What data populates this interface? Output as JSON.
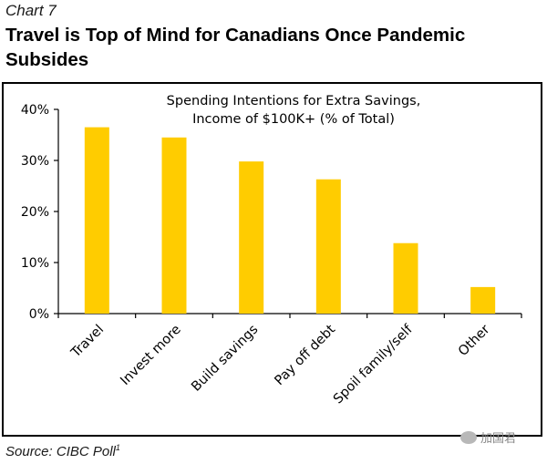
{
  "header": {
    "chart_number": "Chart 7",
    "title": "Travel is Top of Mind for Canadians Once Pandemic Subsides"
  },
  "footer": {
    "source": "Source: CIBC Poll",
    "source_superscript": "1",
    "watermark": "加国君"
  },
  "colors": {
    "bar": "#FFCC00",
    "axis": "#000000"
  },
  "chart_data": {
    "type": "bar",
    "title_lines": [
      "Spending Intentions for Extra Savings,",
      "Income of $100K+ (% of Total)"
    ],
    "categories": [
      "Travel",
      "Invest more",
      "Build savings",
      "Pay off debt",
      "Spoil family/self",
      "Other"
    ],
    "values": [
      36.5,
      34.5,
      29.8,
      26.3,
      13.8,
      5.2
    ],
    "ylim": [
      0,
      40
    ],
    "yticks": [
      0,
      10,
      20,
      30,
      40
    ],
    "ytick_labels": [
      "0%",
      "10%",
      "20%",
      "30%",
      "40%"
    ],
    "xlabel": "",
    "ylabel": "",
    "grid": false,
    "legend": "none"
  }
}
